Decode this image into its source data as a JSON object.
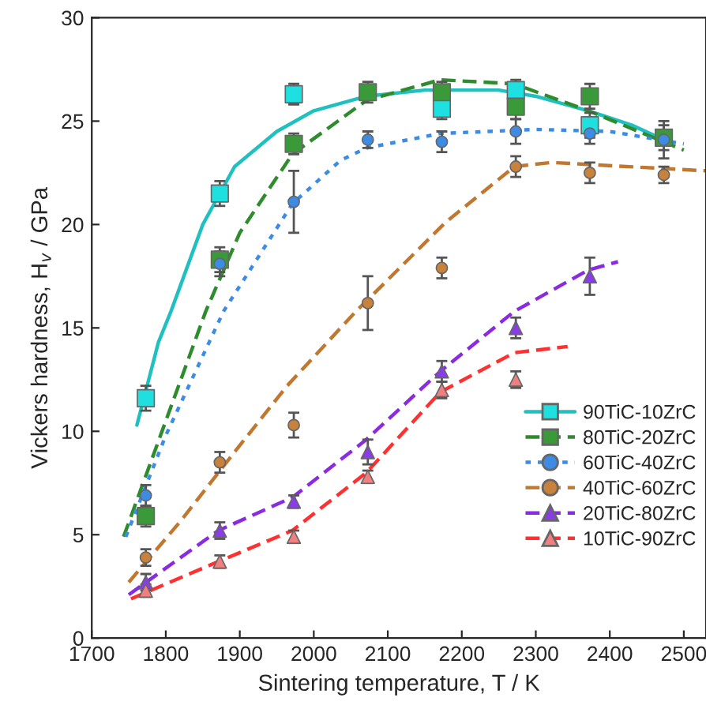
{
  "chart_data": {
    "type": "scatter",
    "xlabel": "Sintering temperature, T / K",
    "ylabel": "Vickers hardness, H$_{v}$ / GPa",
    "xlim": [
      1700,
      2530
    ],
    "xticks": [
      1700,
      1800,
      1900,
      2000,
      2100,
      2200,
      2300,
      2400,
      2500
    ],
    "ylim": [
      0,
      30
    ],
    "yticks": [
      0,
      5,
      10,
      15,
      20,
      25,
      30
    ],
    "grid": false,
    "legend": "right",
    "series": [
      {
        "name": "90TiC-10ZrC",
        "marker": "square",
        "color": "#1ee0e0",
        "x": [
          1773,
          1873,
          1973,
          2073,
          2173,
          2273,
          2373
        ],
        "values": [
          11.6,
          21.5,
          26.3,
          null,
          25.6,
          26.5,
          24.8
        ],
        "errors": [
          0.6,
          0.6,
          0.5,
          null,
          0.5,
          0.5,
          0.6
        ]
      },
      {
        "type": "line",
        "line_style": "solid",
        "color": "#20c0c0",
        "x": [
          1761,
          1790,
          1807,
          1850,
          1893,
          1950,
          2000,
          2071,
          2150,
          2250,
          2300,
          2371,
          2430,
          2473
        ],
        "values": [
          10.3,
          14.3,
          15.8,
          20.0,
          22.8,
          24.5,
          25.5,
          26.2,
          26.5,
          26.5,
          26.2,
          25.5,
          24.8,
          24.1
        ]
      },
      {
        "name": "80TiC-20ZrC",
        "marker": "square",
        "color": "#3a9a3a",
        "x": [
          1773,
          1873,
          1973,
          2073,
          2173,
          2273,
          2373,
          2473
        ],
        "values": [
          5.9,
          18.3,
          23.9,
          26.4,
          26.4,
          25.7,
          26.2,
          24.2
        ],
        "errors": [
          0.5,
          0.6,
          0.5,
          0.5,
          0.5,
          0.6,
          0.6,
          0.6
        ]
      },
      {
        "type": "line",
        "line_style": "dashed",
        "color": "#2e8b2e",
        "x": [
          1743,
          1800,
          1854,
          1900,
          1971,
          2071,
          2171,
          2271,
          2371,
          2500
        ],
        "values": [
          4.9,
          10.5,
          15.8,
          19.6,
          23.4,
          26.0,
          27.0,
          26.8,
          25.5,
          23.6
        ]
      },
      {
        "name": "60TiC-40ZrC",
        "marker": "circle",
        "color": "#3c8ce6",
        "x": [
          1773,
          1873,
          1973,
          2073,
          2173,
          2273,
          2373,
          2473
        ],
        "values": [
          6.9,
          18.1,
          21.1,
          24.1,
          24.0,
          24.5,
          24.4,
          24.1
        ],
        "errors": [
          0.5,
          0.6,
          1.5,
          0.4,
          0.5,
          0.6,
          0.5,
          0.9
        ]
      },
      {
        "type": "line",
        "line_style": "dotted",
        "color": "#3c8ce6",
        "x": [
          1746,
          1800,
          1878,
          1971,
          2036,
          2071,
          2171,
          2300,
          2400,
          2500
        ],
        "values": [
          4.9,
          9.8,
          15.8,
          21.0,
          23.1,
          23.7,
          24.4,
          24.6,
          24.5,
          23.9
        ]
      },
      {
        "name": "40TiC-60ZrC",
        "marker": "circle",
        "color": "#c8823c",
        "x": [
          1773,
          1873,
          1973,
          2073,
          2173,
          2273,
          2373,
          2473
        ],
        "values": [
          3.9,
          8.5,
          10.3,
          16.2,
          17.9,
          22.8,
          22.5,
          22.4
        ],
        "errors": [
          0.4,
          0.5,
          0.6,
          1.3,
          0.5,
          0.5,
          0.5,
          0.4
        ]
      },
      {
        "type": "line",
        "line_style": "dashed",
        "color": "#c07830",
        "x": [
          1750,
          1821,
          1893,
          1964,
          2057,
          2178,
          2271,
          2321,
          2529
        ],
        "values": [
          2.7,
          5.7,
          9.0,
          12.2,
          15.8,
          20.1,
          22.8,
          23.0,
          22.6
        ]
      },
      {
        "name": "20TiC-80ZrC",
        "marker": "triangle",
        "color": "#8a3ce6",
        "x": [
          1773,
          1873,
          1973,
          2073,
          2173,
          2273,
          2373
        ],
        "values": [
          2.7,
          5.2,
          6.6,
          9.0,
          12.9,
          15.0,
          17.5
        ],
        "errors": [
          0.4,
          0.4,
          0.3,
          0.6,
          0.5,
          0.5,
          0.9
        ]
      },
      {
        "type": "line",
        "line_style": "dashed",
        "color": "#8a2be2",
        "x": [
          1750,
          1871,
          1971,
          2071,
          2171,
          2271,
          2371,
          2411
        ],
        "values": [
          2.1,
          5.2,
          6.8,
          9.6,
          12.9,
          15.8,
          17.8,
          18.2
        ]
      },
      {
        "name": "10TiC-90ZrC",
        "marker": "triangle",
        "color": "#f08080",
        "x": [
          1773,
          1873,
          1973,
          2073,
          2173,
          2273
        ],
        "values": [
          2.3,
          3.7,
          4.9,
          7.8,
          12.0,
          12.5
        ],
        "errors": [
          0.3,
          0.3,
          0.3,
          0.3,
          0.4,
          0.4
        ]
      },
      {
        "type": "line",
        "line_style": "dashed",
        "color": "#ff3030",
        "x": [
          1753,
          1871,
          1971,
          2071,
          2171,
          2271,
          2343
        ],
        "values": [
          1.9,
          3.7,
          5.2,
          8.0,
          11.9,
          13.8,
          14.1
        ]
      }
    ]
  }
}
